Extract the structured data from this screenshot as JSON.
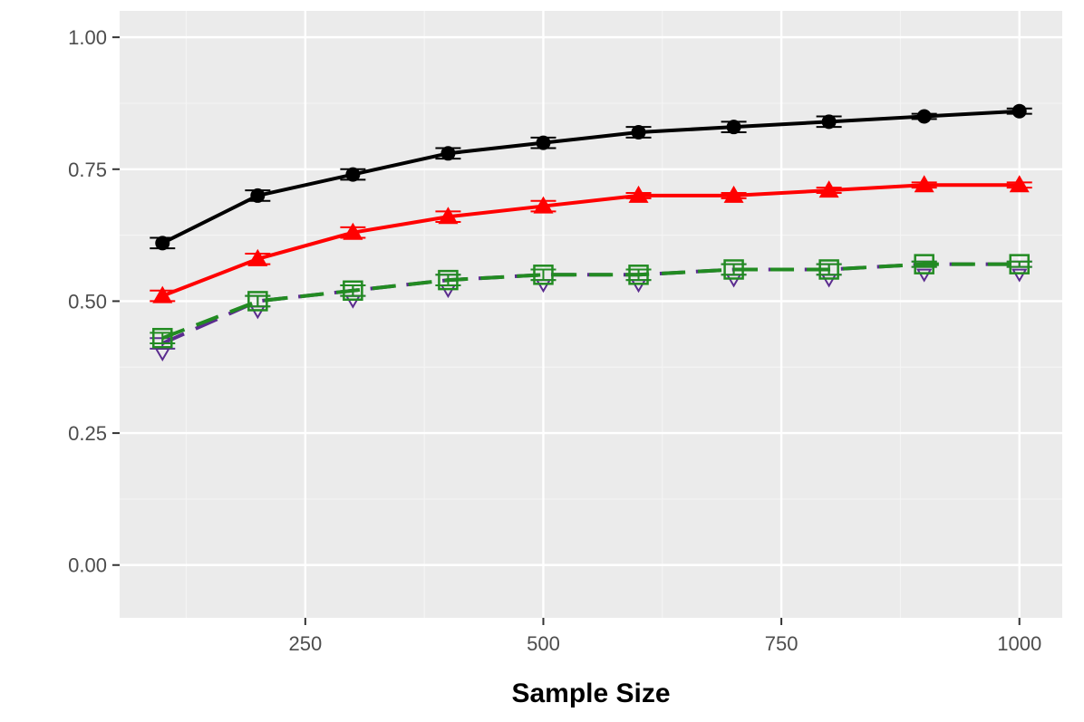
{
  "chart_data": {
    "type": "line",
    "title": "",
    "xlabel": "Sample Size",
    "ylabel": "",
    "xlim": [
      55,
      1045
    ],
    "ylim": [
      -0.1,
      1.05
    ],
    "x_ticks": [
      250,
      500,
      750,
      1000
    ],
    "x_tick_labels": [
      "250",
      "500",
      "750",
      "1000"
    ],
    "y_ticks": [
      0,
      0.25,
      0.5,
      0.75,
      1
    ],
    "y_tick_labels": [
      "0.00",
      "0.25",
      "0.50",
      "0.75",
      "1.00"
    ],
    "grid": true,
    "legend": "none",
    "x": [
      100,
      200,
      300,
      400,
      500,
      600,
      700,
      800,
      900,
      1000
    ],
    "series": [
      {
        "values": [
          0.61,
          0.7,
          0.74,
          0.78,
          0.8,
          0.82,
          0.83,
          0.84,
          0.85,
          0.86
        ],
        "error": [
          0.01,
          0.01,
          0.01,
          0.01,
          0.01,
          0.01,
          0.01,
          0.01,
          0.005,
          0.005
        ],
        "color": "#000000",
        "line": "solid",
        "marker": "circle"
      },
      {
        "values": [
          0.51,
          0.58,
          0.63,
          0.66,
          0.68,
          0.7,
          0.7,
          0.71,
          0.72,
          0.72
        ],
        "error": [
          0.01,
          0.01,
          0.01,
          0.01,
          0.01,
          0.005,
          0.005,
          0.005,
          0.005,
          0.005
        ],
        "color": "#ff0000",
        "line": "solid",
        "marker": "triangle"
      },
      {
        "values": [
          0.42,
          0.5,
          0.52,
          0.54,
          0.55,
          0.55,
          0.56,
          0.56,
          0.57,
          0.57
        ],
        "error": [
          0.01,
          0.01,
          0.01,
          0.01,
          0.01,
          0.01,
          0.01,
          0.01,
          0.005,
          0.005
        ],
        "color": "#5b2c8f",
        "line": "dashed",
        "marker": "triangle-down-open"
      },
      {
        "values": [
          0.43,
          0.5,
          0.52,
          0.54,
          0.55,
          0.55,
          0.56,
          0.56,
          0.57,
          0.57
        ],
        "error": [
          0.01,
          0.01,
          0.01,
          0.01,
          0.01,
          0.01,
          0.01,
          0.01,
          0.005,
          0.005
        ],
        "color": "#228b22",
        "line": "dashed",
        "marker": "square-open"
      }
    ],
    "colors": {
      "panel_background": "#ebebeb",
      "grid_major": "#ffffff",
      "grid_minor": "#f4f4f4",
      "tick_color": "#333333",
      "tick_label_color": "#4d4d4d"
    }
  }
}
